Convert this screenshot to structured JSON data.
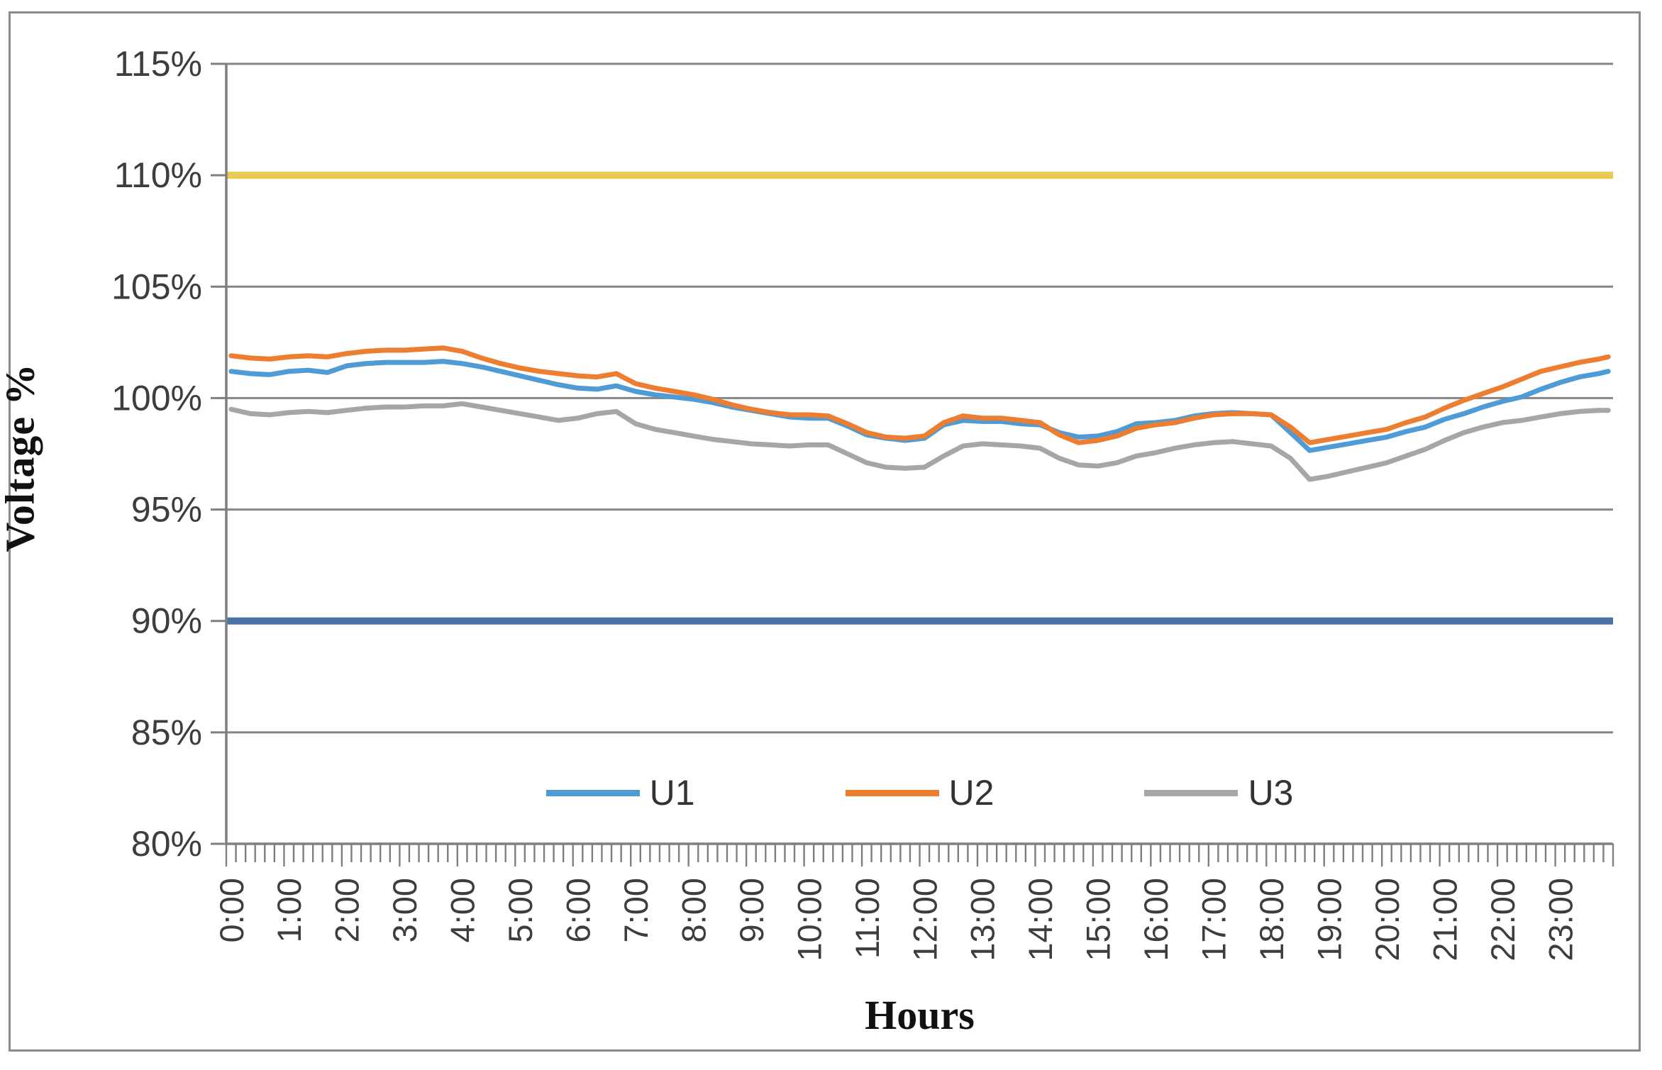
{
  "figure": {
    "background": "#ffffff",
    "border_color": "#8c8c8c"
  },
  "axes": {
    "y": {
      "title": "Voltage %",
      "min": 80,
      "max": 115,
      "step": 5,
      "tick_labels": [
        "80%",
        "85%",
        "90%",
        "95%",
        "100%",
        "105%",
        "110%",
        "115%"
      ]
    },
    "x": {
      "title": "Hours",
      "tick_labels": [
        "0:00",
        "1:00",
        "2:00",
        "3:00",
        "4:00",
        "5:00",
        "6:00",
        "7:00",
        "8:00",
        "9:00",
        "10:00",
        "11:00",
        "12:00",
        "13:00",
        "14:00",
        "15:00",
        "16:00",
        "17:00",
        "18:00",
        "19:00",
        "20:00",
        "21:00",
        "22:00",
        "23:00"
      ],
      "minor_ticks_per_hour": 6
    }
  },
  "legend": {
    "items": [
      {
        "label": "U1",
        "color": "#4e9bd5"
      },
      {
        "label": "U2",
        "color": "#ed7d31"
      },
      {
        "label": "U3",
        "color": "#a6a6a6"
      }
    ]
  },
  "chart_data": {
    "type": "line",
    "title": "",
    "xlabel": "Hours",
    "ylabel": "Voltage %",
    "ylim": [
      80,
      115
    ],
    "grid": true,
    "legend_position": "bottom-inside",
    "x": [
      "0:00",
      "0:20",
      "0:40",
      "1:00",
      "1:20",
      "1:40",
      "2:00",
      "2:20",
      "2:40",
      "3:00",
      "3:20",
      "3:40",
      "4:00",
      "4:20",
      "4:40",
      "5:00",
      "5:20",
      "5:40",
      "6:00",
      "6:20",
      "6:40",
      "7:00",
      "7:20",
      "7:40",
      "8:00",
      "8:20",
      "8:40",
      "9:00",
      "9:20",
      "9:40",
      "10:00",
      "10:20",
      "10:40",
      "11:00",
      "11:20",
      "11:40",
      "12:00",
      "12:20",
      "12:40",
      "13:00",
      "13:20",
      "13:40",
      "14:00",
      "14:20",
      "14:40",
      "15:00",
      "15:20",
      "15:40",
      "16:00",
      "16:20",
      "16:40",
      "17:00",
      "17:20",
      "17:40",
      "18:00",
      "18:20",
      "18:40",
      "19:00",
      "19:20",
      "19:40",
      "20:00",
      "20:20",
      "20:40",
      "21:00",
      "21:20",
      "21:40",
      "22:00",
      "22:20",
      "22:40",
      "23:00",
      "23:20",
      "23:40",
      "23:50"
    ],
    "series": [
      {
        "name": "U1",
        "color": "#4e9bd5",
        "values": [
          101.2,
          101.1,
          101.05,
          101.2,
          101.25,
          101.15,
          101.45,
          101.55,
          101.6,
          101.6,
          101.6,
          101.65,
          101.55,
          101.4,
          101.2,
          101.0,
          100.8,
          100.6,
          100.45,
          100.4,
          100.55,
          100.3,
          100.15,
          100.05,
          99.95,
          99.8,
          99.6,
          99.45,
          99.3,
          99.15,
          99.1,
          99.1,
          98.75,
          98.35,
          98.2,
          98.1,
          98.2,
          98.8,
          99.0,
          98.95,
          98.95,
          98.85,
          98.8,
          98.45,
          98.25,
          98.3,
          98.5,
          98.85,
          98.9,
          99.0,
          99.2,
          99.3,
          99.35,
          99.3,
          99.25,
          98.45,
          97.65,
          97.8,
          97.95,
          98.1,
          98.25,
          98.5,
          98.7,
          99.05,
          99.3,
          99.6,
          99.85,
          100.05,
          100.4,
          100.7,
          100.95,
          101.1,
          101.2
        ]
      },
      {
        "name": "U2",
        "color": "#ed7d31",
        "values": [
          101.9,
          101.8,
          101.75,
          101.85,
          101.9,
          101.85,
          102.0,
          102.1,
          102.15,
          102.15,
          102.2,
          102.25,
          102.1,
          101.8,
          101.55,
          101.35,
          101.2,
          101.1,
          101.0,
          100.95,
          101.1,
          100.65,
          100.45,
          100.3,
          100.15,
          99.95,
          99.7,
          99.5,
          99.35,
          99.25,
          99.25,
          99.2,
          98.85,
          98.45,
          98.25,
          98.2,
          98.3,
          98.9,
          99.2,
          99.1,
          99.1,
          99.0,
          98.9,
          98.35,
          98.0,
          98.1,
          98.3,
          98.65,
          98.8,
          98.9,
          99.1,
          99.25,
          99.3,
          99.3,
          99.25,
          98.7,
          98.0,
          98.15,
          98.3,
          98.45,
          98.6,
          98.9,
          99.15,
          99.55,
          99.9,
          100.2,
          100.5,
          100.85,
          101.2,
          101.4,
          101.6,
          101.75,
          101.85
        ]
      },
      {
        "name": "U3",
        "color": "#a6a6a6",
        "values": [
          99.5,
          99.3,
          99.25,
          99.35,
          99.4,
          99.35,
          99.45,
          99.55,
          99.6,
          99.6,
          99.65,
          99.65,
          99.75,
          99.6,
          99.45,
          99.3,
          99.15,
          99.0,
          99.1,
          99.3,
          99.4,
          98.85,
          98.6,
          98.45,
          98.3,
          98.15,
          98.05,
          97.95,
          97.9,
          97.85,
          97.9,
          97.9,
          97.5,
          97.1,
          96.9,
          96.85,
          96.9,
          97.4,
          97.85,
          97.95,
          97.9,
          97.85,
          97.75,
          97.3,
          97.0,
          96.95,
          97.1,
          97.4,
          97.55,
          97.75,
          97.9,
          98.0,
          98.05,
          97.95,
          97.85,
          97.3,
          96.35,
          96.5,
          96.7,
          96.9,
          97.1,
          97.4,
          97.7,
          98.1,
          98.45,
          98.7,
          98.9,
          99.0,
          99.15,
          99.3,
          99.4,
          99.45,
          99.45
        ]
      }
    ],
    "reference_lines": [
      {
        "name": "upper-voltage-limit",
        "value": 110,
        "color": "#e9cb53"
      },
      {
        "name": "lower-voltage-limit",
        "value": 90,
        "color": "#4b72a7"
      }
    ]
  }
}
